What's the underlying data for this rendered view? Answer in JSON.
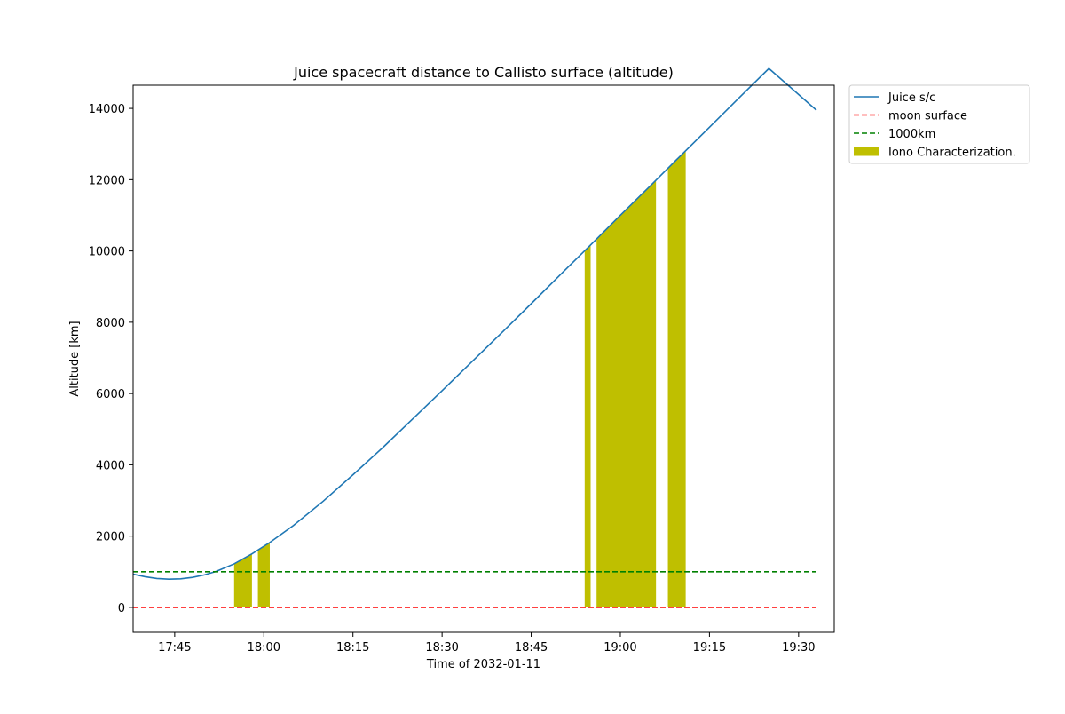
{
  "chart_data": {
    "type": "line",
    "title": "Juice spacecraft distance to Callisto surface (altitude)",
    "xlabel": "Time of 2032-01-11",
    "ylabel": "Altitude [km]",
    "x_ticks": [
      "17:45",
      "18:00",
      "18:15",
      "18:30",
      "18:45",
      "19:00",
      "19:15",
      "19:30"
    ],
    "y_ticks": [
      "0",
      "2000",
      "4000",
      "6000",
      "8000",
      "10000",
      "12000",
      "14000"
    ],
    "xlim": [
      "17:38",
      "19:36"
    ],
    "ylim": [
      -700,
      14650
    ],
    "legend_position": "outside-top-right",
    "series": [
      {
        "name": "Juice s/c",
        "style": "solid",
        "color": "#1f77b4",
        "points": [
          [
            "17:38",
            930
          ],
          [
            "17:40",
            860
          ],
          [
            "17:42",
            810
          ],
          [
            "17:44",
            790
          ],
          [
            "17:46",
            800
          ],
          [
            "17:48",
            840
          ],
          [
            "17:50",
            910
          ],
          [
            "17:52",
            1010
          ],
          [
            "17:55",
            1220
          ],
          [
            "17:58",
            1500
          ],
          [
            "18:01",
            1820
          ],
          [
            "18:05",
            2300
          ],
          [
            "18:10",
            2980
          ],
          [
            "18:15",
            3720
          ],
          [
            "18:20",
            4480
          ],
          [
            "18:25",
            5280
          ],
          [
            "18:30",
            6080
          ],
          [
            "18:35",
            6890
          ],
          [
            "18:40",
            7700
          ],
          [
            "18:45",
            8520
          ],
          [
            "18:50",
            9350
          ],
          [
            "18:55",
            10170
          ],
          [
            "19:00",
            11000
          ],
          [
            "19:05",
            11820
          ],
          [
            "19:10",
            12650
          ],
          [
            "19:15",
            13470
          ],
          [
            "19:20",
            14300
          ],
          [
            "19:25",
            15120
          ],
          [
            "19:33",
            13950
          ]
        ]
      },
      {
        "name": "moon surface",
        "style": "dashed",
        "color": "#ff0000",
        "points": [
          [
            "17:38",
            0
          ],
          [
            "19:33",
            0
          ]
        ]
      },
      {
        "name": "1000km",
        "style": "dashed",
        "color": "#008000",
        "points": [
          [
            "17:38",
            1000
          ],
          [
            "19:33",
            1000
          ]
        ]
      }
    ],
    "fill_regions": {
      "name": "Iono Characterization.",
      "color": "#bfbf00",
      "intervals": [
        [
          "17:55",
          "17:58"
        ],
        [
          "17:59",
          "18:01"
        ],
        [
          "18:54",
          "18:55"
        ],
        [
          "18:56",
          "19:06"
        ],
        [
          "19:08",
          "19:11"
        ]
      ]
    }
  }
}
